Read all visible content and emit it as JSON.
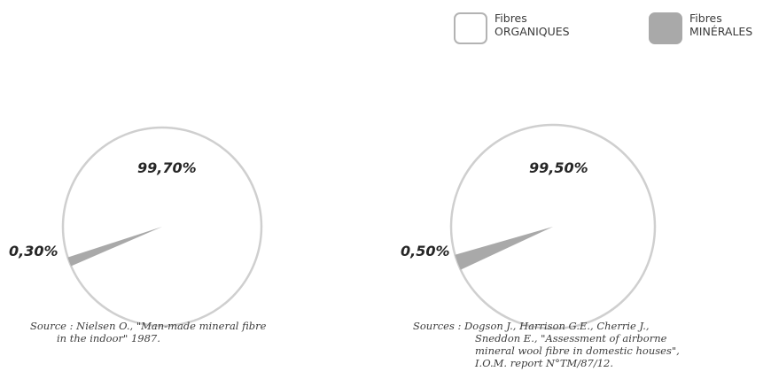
{
  "legend": {
    "organic": {
      "line1": "Fibres",
      "line2": "ORGANIQUES",
      "color": "#ffffff"
    },
    "mineral": {
      "line1": "Fibres",
      "line2": "MINÉRALES",
      "color": "#a9a9a9"
    }
  },
  "colors": {
    "outline": "#cfcfcf",
    "mineral": "#a9a9a9"
  },
  "chart_data": [
    {
      "type": "pie",
      "slices": [
        {
          "label": "99,70%",
          "value": 99.7,
          "series": "Fibres ORGANIQUES"
        },
        {
          "label": "0,30%",
          "value": 0.3,
          "series": "Fibres MINÉRALES"
        }
      ],
      "source": [
        "Source : Nielsen O., \"Man-made mineral fibre",
        "in the indoor\" 1987."
      ]
    },
    {
      "type": "pie",
      "slices": [
        {
          "label": "99,50%",
          "value": 99.5,
          "series": "Fibres ORGANIQUES"
        },
        {
          "label": "0,50%",
          "value": 0.5,
          "series": "Fibres MINÉRALES"
        }
      ],
      "source": [
        "Sources : Dogson J., Harrison G.E., Cherrie J.,",
        "Sneddon E., \"Assessment of airborne",
        "mineral wool fibre in domestic houses\",",
        "I.O.M. report N°TM/87/12."
      ]
    }
  ]
}
